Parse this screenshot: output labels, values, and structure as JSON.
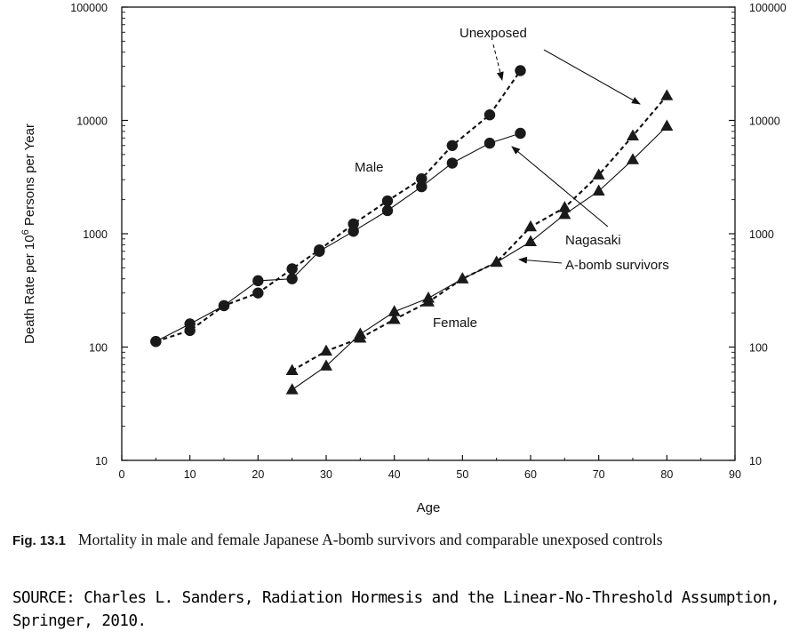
{
  "chart_data": {
    "type": "line",
    "xlabel": "Age",
    "ylabel_main": "Death Rate per 10",
    "ylabel_exp": "6",
    "ylabel_rest": " Persons per Year",
    "xlim": [
      0,
      90
    ],
    "ylim": [
      10,
      100000
    ],
    "yscale": "log",
    "x_ticks": [
      0,
      10,
      20,
      30,
      40,
      50,
      60,
      70,
      80,
      90
    ],
    "y_ticks": [
      10,
      100,
      1000,
      10000,
      100000
    ],
    "x_tick_labels": [
      "0",
      "10",
      "20",
      "30",
      "40",
      "50",
      "60",
      "70",
      "80",
      "90"
    ],
    "y_tick_labels": [
      "10",
      "100",
      "1000",
      "10000",
      "100000"
    ],
    "grid": false,
    "series": [
      {
        "name": "Male Unexposed",
        "marker": "circle",
        "style": "dashed",
        "x": [
          5,
          10,
          15,
          20,
          25,
          29,
          34,
          39,
          44,
          48.5,
          54,
          58.5
        ],
        "y": [
          112,
          140,
          232,
          300,
          490,
          720,
          1220,
          1950,
          3050,
          6000,
          11200,
          27500
        ]
      },
      {
        "name": "Male Nagasaki A-bomb survivors",
        "marker": "circle",
        "style": "solid",
        "x": [
          5,
          10,
          15,
          20,
          25,
          29,
          34,
          39,
          44,
          48.5,
          54,
          58.5
        ],
        "y": [
          112,
          160,
          232,
          385,
          400,
          700,
          1050,
          1600,
          2600,
          4200,
          6300,
          7700
        ]
      },
      {
        "name": "Female Unexposed",
        "marker": "triangle",
        "style": "dashed",
        "x": [
          25,
          30,
          35,
          40,
          45,
          50,
          55,
          60,
          65,
          70,
          75,
          80
        ],
        "y": [
          62,
          92,
          120,
          175,
          250,
          400,
          560,
          1150,
          1700,
          3300,
          7300,
          16500
        ]
      },
      {
        "name": "Female Nagasaki A-bomb survivors",
        "marker": "triangle",
        "style": "solid",
        "x": [
          25,
          30,
          35,
          40,
          45,
          50,
          55,
          60,
          65,
          70,
          75,
          80
        ],
        "y": [
          42,
          68,
          130,
          205,
          270,
          400,
          560,
          850,
          1480,
          2380,
          4500,
          8900
        ]
      }
    ],
    "annotations": {
      "unexposed": "Unexposed",
      "male": "Male",
      "female": "Female",
      "nagasaki": "Nagasaki",
      "survivors": "A-bomb survivors"
    }
  },
  "caption": {
    "fig_number": "Fig. 13.1",
    "text": "Mortality in male and female Japanese A-bomb survivors and comparable unexposed controls"
  },
  "source_text": "SOURCE: Charles L. Sanders, Radiation Hormesis and the Linear-No-Threshold Assumption, Springer, 2010."
}
